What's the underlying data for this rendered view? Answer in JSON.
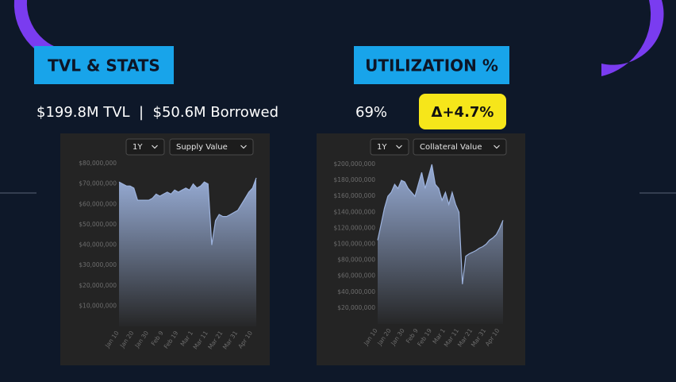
{
  "header": {
    "tvl_title": "TVL & STATS",
    "util_title": "UTILIZATION %",
    "tvl_stats": "$199.8M TVL  |  $50.6M Borrowed",
    "utilization": "69%",
    "delta": "Δ+4.7%"
  },
  "chart_data": [
    {
      "type": "area",
      "period": "1Y",
      "metric": "Supply Value",
      "color": "#9db3de",
      "categories": [
        "Jan 10",
        null,
        null,
        null,
        "Jan 20",
        null,
        null,
        null,
        "Jan 30",
        null,
        null,
        null,
        "Feb 9",
        null,
        null,
        null,
        "Feb 19",
        null,
        null,
        null,
        "Mar 1",
        null,
        null,
        null,
        "Mar 11",
        null,
        null,
        null,
        "Mar 21",
        null,
        null,
        null,
        "Mar 31",
        null,
        null,
        null,
        "Apr 10",
        null
      ],
      "values": [
        71000000,
        70000000,
        69000000,
        69000000,
        68000000,
        62000000,
        62000000,
        62000000,
        62000000,
        63000000,
        65000000,
        64000000,
        65000000,
        66000000,
        65000000,
        67000000,
        66000000,
        67000000,
        68000000,
        67000000,
        70000000,
        68000000,
        69000000,
        71000000,
        70000000,
        40000000,
        52000000,
        55000000,
        54000000,
        54000000,
        55000000,
        56000000,
        57000000,
        60000000,
        63000000,
        66000000,
        68000000,
        73000000
      ],
      "ylim": [
        0,
        80000000
      ],
      "yticks": [
        {
          "value": 10000000,
          "label": "$10,000,000"
        },
        {
          "value": 20000000,
          "label": "$20,000,000"
        },
        {
          "value": 30000000,
          "label": "$30,000,000"
        },
        {
          "value": 40000000,
          "label": "$40,000,000"
        },
        {
          "value": 50000000,
          "label": "$50,000,000"
        },
        {
          "value": 60000000,
          "label": "$60,000,000"
        },
        {
          "value": 70000000,
          "label": "$70,000,000"
        },
        {
          "value": 80000000,
          "label": "$80,000,000"
        }
      ],
      "grid": false
    },
    {
      "type": "area",
      "period": "1Y",
      "metric": "Collateral Value",
      "color": "#9db3de",
      "categories": [
        "Jan 10",
        null,
        null,
        null,
        "Jan 20",
        null,
        null,
        null,
        "Jan 30",
        null,
        null,
        null,
        "Feb 9",
        null,
        null,
        null,
        "Feb 19",
        null,
        null,
        null,
        "Mar 1",
        null,
        null,
        null,
        "Mar 11",
        null,
        null,
        null,
        "Mar 21",
        null,
        null,
        null,
        "Mar 31",
        null,
        null,
        null,
        "Apr 10",
        null
      ],
      "values": [
        105000000,
        125000000,
        145000000,
        160000000,
        165000000,
        175000000,
        170000000,
        180000000,
        178000000,
        170000000,
        165000000,
        160000000,
        175000000,
        190000000,
        170000000,
        185000000,
        200000000,
        175000000,
        170000000,
        155000000,
        165000000,
        150000000,
        165000000,
        150000000,
        140000000,
        50000000,
        85000000,
        88000000,
        90000000,
        92000000,
        95000000,
        97000000,
        100000000,
        105000000,
        108000000,
        112000000,
        120000000,
        130000000
      ],
      "ylim": [
        0,
        200000000
      ],
      "yticks": [
        {
          "value": 20000000,
          "label": "$20,000,000"
        },
        {
          "value": 40000000,
          "label": "$40,000,000"
        },
        {
          "value": 60000000,
          "label": "$60,000,000"
        },
        {
          "value": 80000000,
          "label": "$80,000,000"
        },
        {
          "value": 100000000,
          "label": "$100,000,000"
        },
        {
          "value": 120000000,
          "label": "$120,000,000"
        },
        {
          "value": 140000000,
          "label": "$140,000,000"
        },
        {
          "value": 160000000,
          "label": "$160,000,000"
        },
        {
          "value": 180000000,
          "label": "$180,000,000"
        },
        {
          "value": 200000000,
          "label": "$200,000,000"
        }
      ],
      "grid": false
    }
  ]
}
